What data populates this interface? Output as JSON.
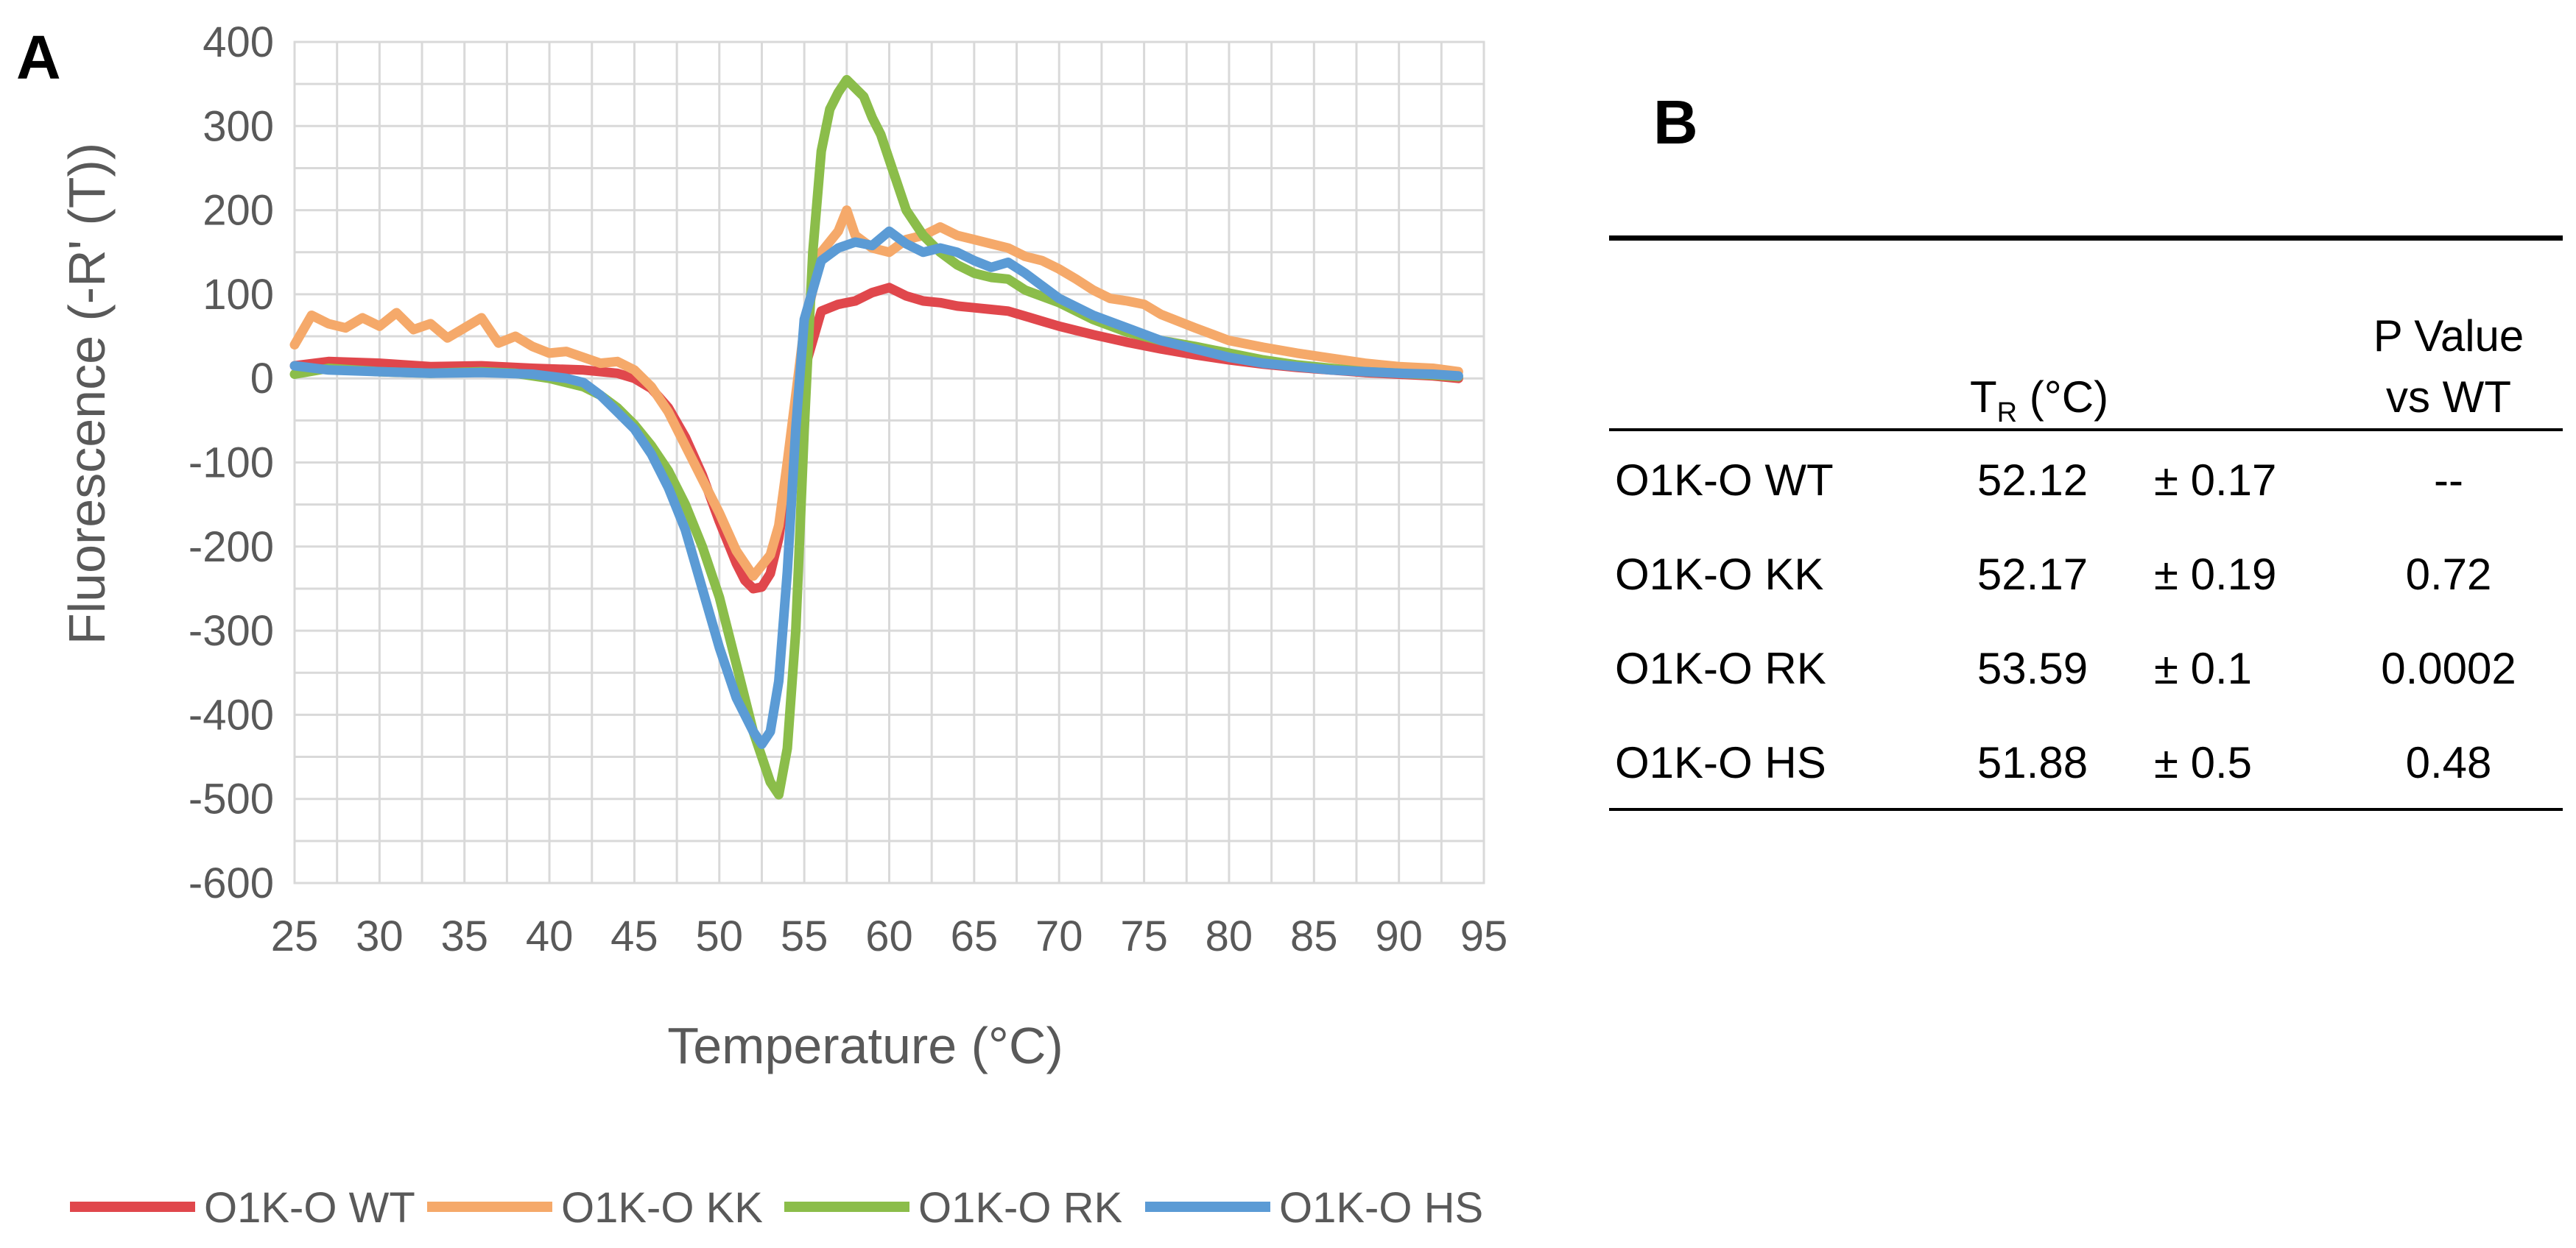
{
  "panels": {
    "a_label": "A",
    "b_label": "B"
  },
  "chart_data": {
    "type": "line",
    "title": "",
    "xlabel": "Temperature (°C)",
    "ylabel": "Fluorescence (-R' (T))",
    "xlim": [
      25,
      95
    ],
    "ylim": [
      -600,
      400
    ],
    "xticks": [
      25,
      30,
      35,
      40,
      45,
      50,
      55,
      60,
      65,
      70,
      75,
      80,
      85,
      90,
      95
    ],
    "yticks": [
      400,
      300,
      200,
      100,
      0,
      -100,
      -200,
      -300,
      -400,
      -500,
      -600
    ],
    "grid": true,
    "legend_position": "bottom",
    "series": [
      {
        "name": "O1K-O WT",
        "color": "#E0474C",
        "x": [
          25,
          27,
          30,
          33,
          36,
          39,
          42,
          44,
          45,
          46,
          47,
          48,
          49,
          50,
          51,
          51.5,
          52,
          52.5,
          53,
          53.5,
          54,
          55,
          56,
          57,
          58,
          59,
          60,
          61,
          62,
          63,
          64,
          65,
          66,
          67,
          68,
          69,
          70,
          72,
          74,
          76,
          78,
          80,
          82,
          84,
          86,
          88,
          90,
          92,
          93.5
        ],
        "values": [
          15,
          20,
          18,
          14,
          15,
          12,
          10,
          6,
          0,
          -12,
          -35,
          -70,
          -115,
          -170,
          -220,
          -240,
          -250,
          -248,
          -232,
          -190,
          -120,
          10,
          80,
          88,
          92,
          102,
          108,
          98,
          92,
          90,
          86,
          84,
          82,
          80,
          74,
          68,
          62,
          52,
          43,
          35,
          28,
          22,
          17,
          13,
          10,
          7,
          5,
          3,
          0
        ]
      },
      {
        "name": "O1K-O KK",
        "color": "#F5A96A",
        "x": [
          25,
          26,
          27,
          28,
          29,
          30,
          31,
          32,
          33,
          34,
          35,
          36,
          37,
          38,
          39,
          40,
          41,
          42,
          43,
          44,
          45,
          46,
          47,
          48,
          49,
          50,
          51,
          52,
          53,
          53.5,
          54,
          55,
          56,
          57,
          57.5,
          58,
          59,
          60,
          61,
          62,
          63,
          64,
          65,
          66,
          67,
          68,
          69,
          70,
          71,
          72,
          73,
          74,
          75,
          76,
          78,
          80,
          82,
          84,
          86,
          88,
          90,
          92,
          93.5
        ],
        "values": [
          40,
          75,
          65,
          60,
          72,
          62,
          78,
          58,
          65,
          48,
          60,
          72,
          42,
          50,
          38,
          30,
          32,
          25,
          18,
          20,
          10,
          -10,
          -40,
          -80,
          -120,
          -160,
          -205,
          -235,
          -210,
          -175,
          -100,
          60,
          150,
          175,
          200,
          170,
          155,
          150,
          165,
          170,
          180,
          170,
          165,
          160,
          155,
          145,
          140,
          130,
          118,
          105,
          95,
          92,
          88,
          76,
          60,
          45,
          37,
          30,
          24,
          18,
          14,
          12,
          8
        ]
      },
      {
        "name": "O1K-O RK",
        "color": "#8BBD4A",
        "x": [
          25,
          27,
          30,
          33,
          36,
          38,
          40,
          42,
          43,
          44,
          45,
          46,
          47,
          48,
          49,
          50,
          51,
          52,
          53,
          53.5,
          54,
          54.5,
          55,
          55.5,
          56,
          56.5,
          57,
          57.5,
          58,
          58.5,
          59,
          59.5,
          60,
          61,
          62,
          63,
          64,
          65,
          66,
          67,
          68,
          70,
          72,
          74,
          76,
          78,
          80,
          82,
          84,
          86,
          88,
          90,
          92,
          93.5
        ],
        "values": [
          5,
          12,
          8,
          6,
          8,
          6,
          0,
          -10,
          -20,
          -35,
          -55,
          -80,
          -110,
          -150,
          -200,
          -260,
          -340,
          -420,
          -480,
          -495,
          -440,
          -300,
          -60,
          150,
          270,
          320,
          340,
          355,
          345,
          335,
          310,
          290,
          260,
          200,
          170,
          150,
          135,
          125,
          120,
          118,
          105,
          90,
          70,
          55,
          45,
          38,
          30,
          22,
          16,
          12,
          8,
          6,
          4,
          2
        ]
      },
      {
        "name": "O1K-O HS",
        "color": "#5B9BD5",
        "x": [
          25,
          27,
          30,
          33,
          36,
          39,
          41,
          42,
          43,
          44,
          45,
          46,
          47,
          48,
          49,
          50,
          51,
          52,
          52.5,
          53,
          53.5,
          54,
          54.5,
          55,
          56,
          57,
          58,
          59,
          60,
          61,
          62,
          63,
          64,
          65,
          66,
          67,
          68,
          69,
          70,
          72,
          74,
          76,
          78,
          80,
          82,
          84,
          86,
          88,
          90,
          92,
          93.5
        ],
        "values": [
          15,
          10,
          8,
          6,
          7,
          5,
          0,
          -5,
          -20,
          -40,
          -60,
          -90,
          -130,
          -180,
          -250,
          -320,
          -380,
          -420,
          -435,
          -420,
          -360,
          -230,
          -60,
          70,
          140,
          155,
          162,
          158,
          175,
          160,
          150,
          155,
          150,
          140,
          132,
          138,
          125,
          110,
          95,
          75,
          60,
          45,
          35,
          25,
          18,
          14,
          10,
          8,
          6,
          5,
          3
        ]
      }
    ]
  },
  "table": {
    "headers": {
      "tr_main": "T",
      "tr_sub": "R",
      "tr_unit": " (°C)",
      "p_line1": "P Value",
      "p_line2": "vs WT"
    },
    "rows": [
      {
        "name": "O1K-O WT",
        "tr": "52.12",
        "sd": "± 0.17",
        "p": "--"
      },
      {
        "name": "O1K-O KK",
        "tr": "52.17",
        "sd": "± 0.19",
        "p": "0.72"
      },
      {
        "name": "O1K-O RK",
        "tr": "53.59",
        "sd": "± 0.1",
        "p": "0.0002"
      },
      {
        "name": "O1K-O HS",
        "tr": "51.88",
        "sd": "± 0.5",
        "p": "0.48"
      }
    ]
  }
}
